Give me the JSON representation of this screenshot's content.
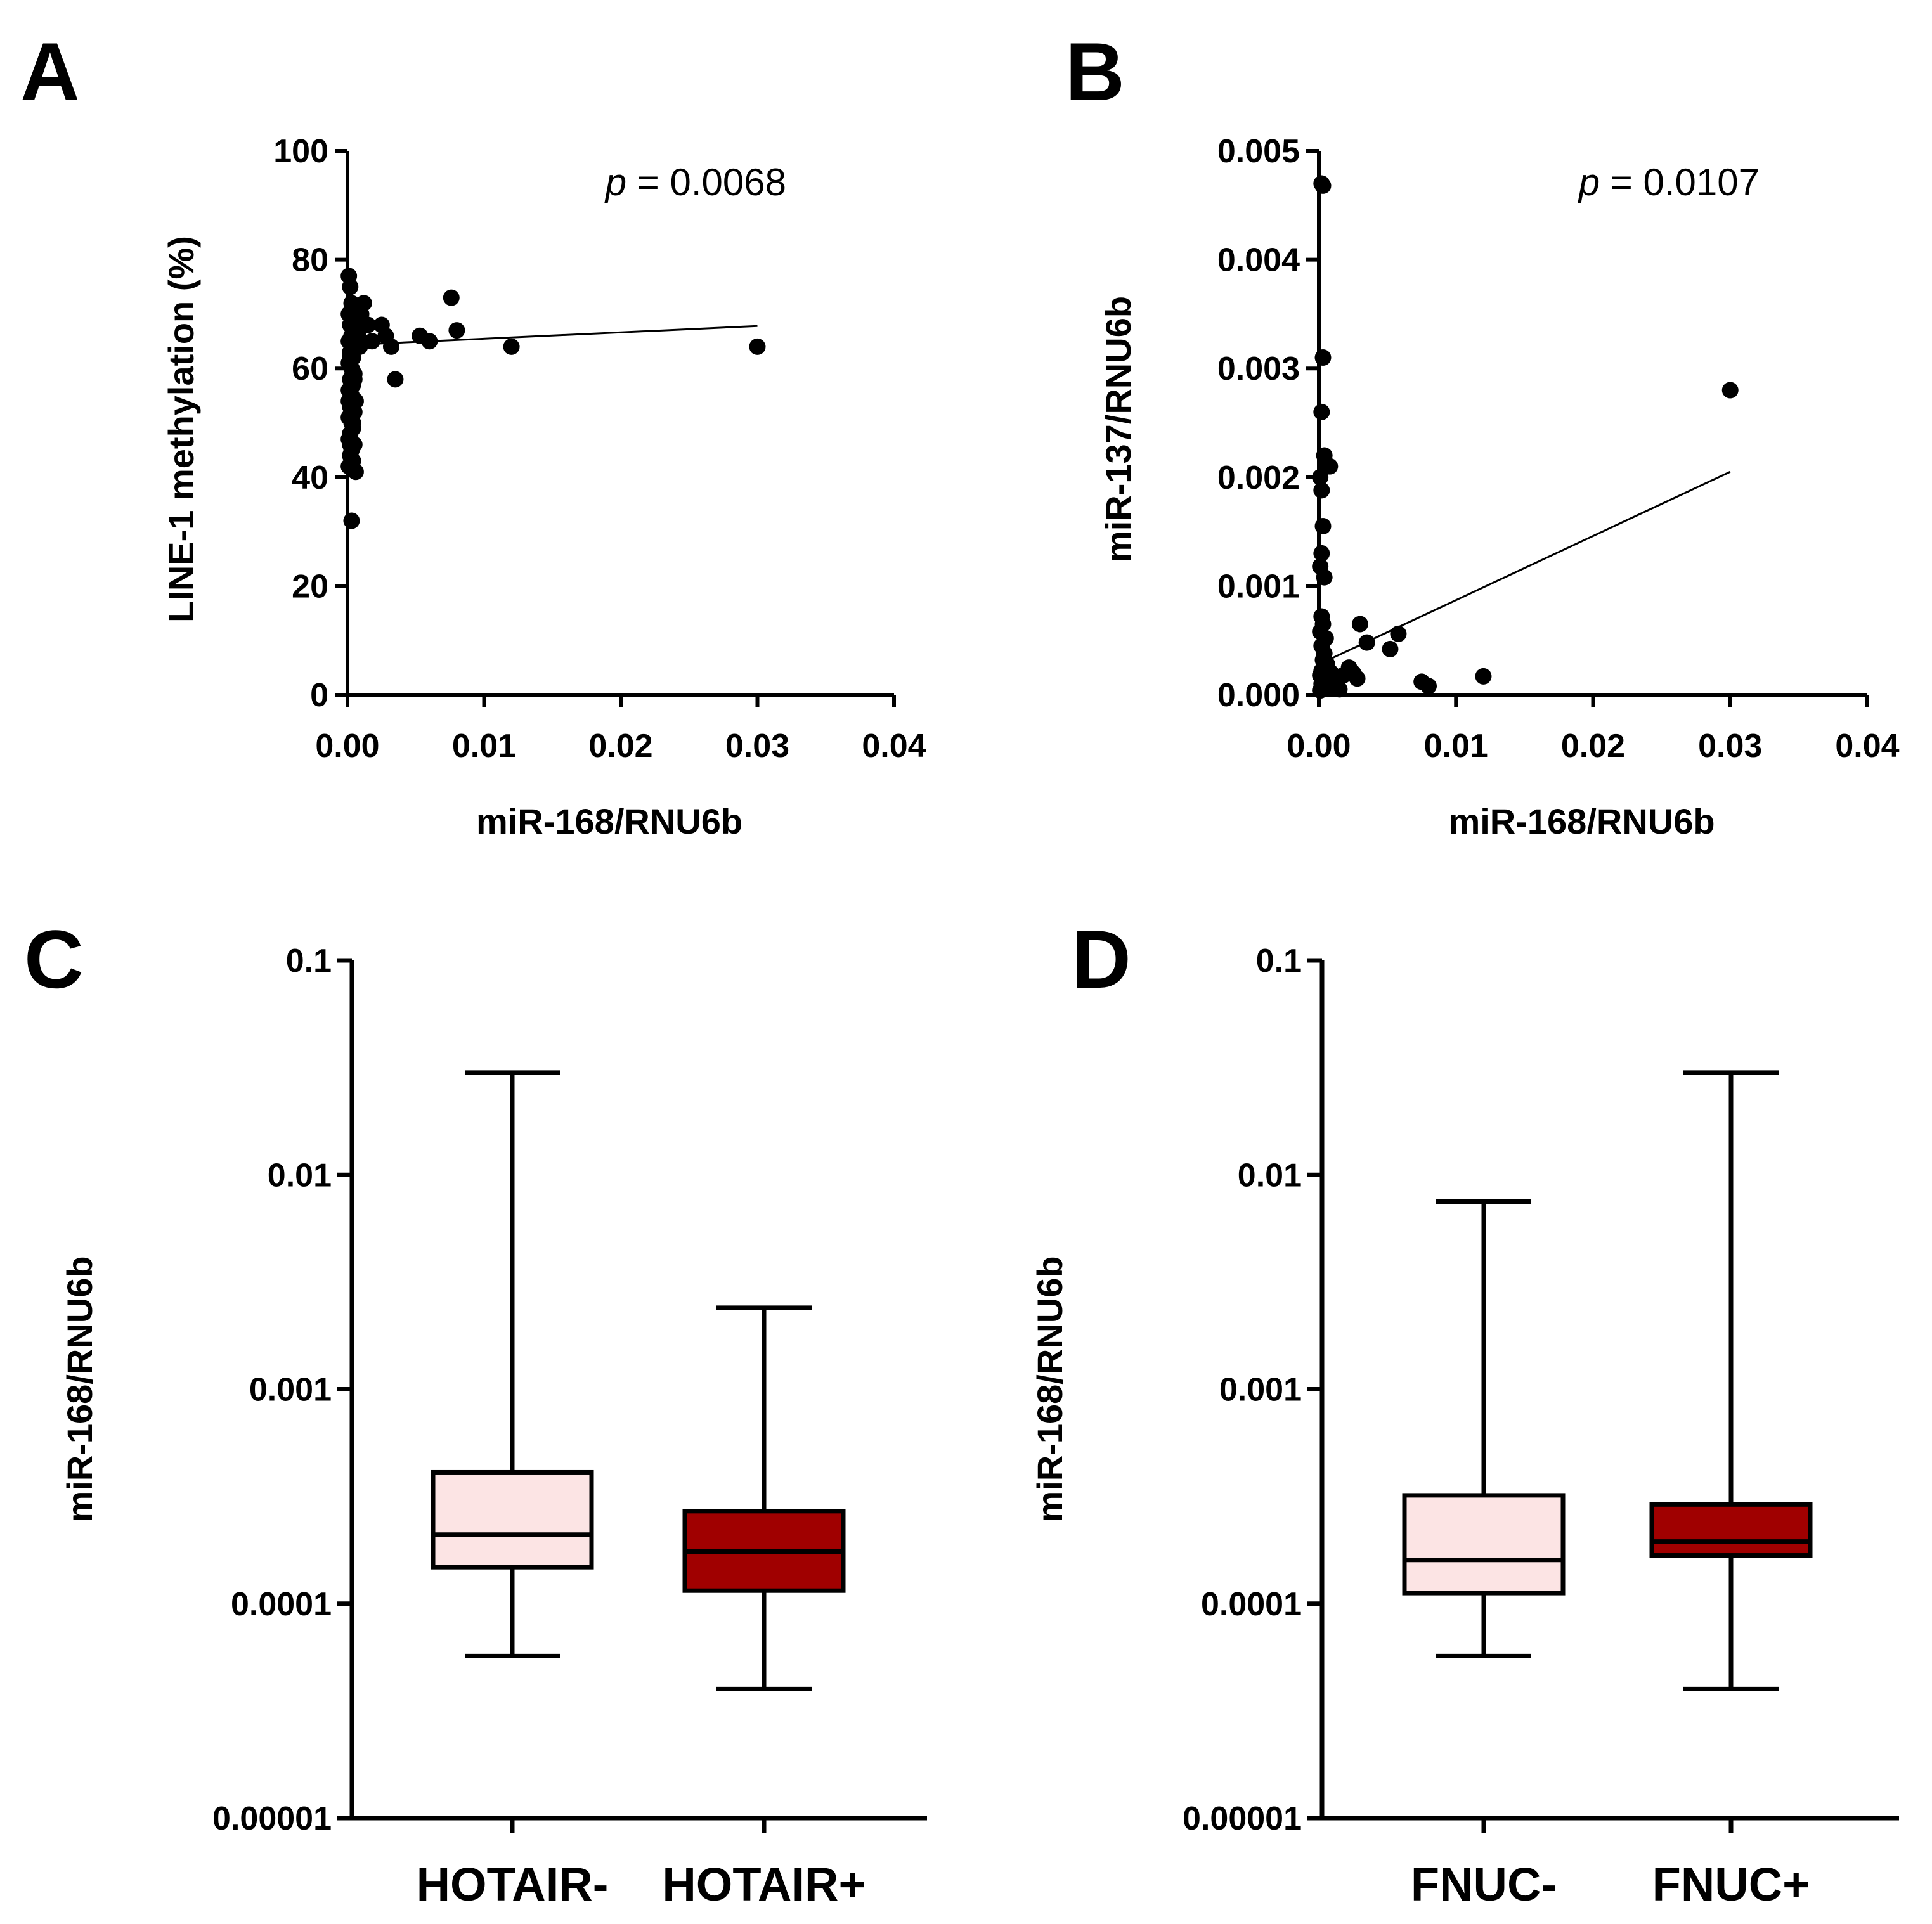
{
  "figure": {
    "panel_letters": [
      "A",
      "B",
      "C",
      "D"
    ]
  },
  "chart_data": [
    {
      "panel": "A",
      "type": "scatter",
      "xlabel": "miR-168/RNU6b",
      "ylabel": "LINE-1 methylation (%)",
      "xlim": [
        0,
        0.04
      ],
      "ylim": [
        0,
        100
      ],
      "x_ticks": [
        "0.00",
        "0.01",
        "0.02",
        "0.03",
        "0.04"
      ],
      "y_ticks": [
        "0",
        "20",
        "40",
        "60",
        "80",
        "100"
      ],
      "annotation": {
        "p_symbol": "p",
        "text": " = 0.0068"
      },
      "fit_line": {
        "x": [
          0.0,
          0.03
        ],
        "y": [
          64.3,
          67.8
        ]
      },
      "points": {
        "x": [
          0.0001,
          0.0002,
          0.0003,
          0.0001,
          0.0004,
          0.0002,
          0.0005,
          0.0003,
          0.0001,
          0.0006,
          0.0002,
          0.0004,
          0.0001,
          0.0003,
          0.0005,
          0.0002,
          0.0004,
          0.0001,
          0.0003,
          0.0006,
          0.0002,
          0.0005,
          0.0001,
          0.0003,
          0.0004,
          0.0002,
          0.0001,
          0.0005,
          0.0003,
          0.0002,
          0.0004,
          0.0001,
          0.0006,
          0.0003,
          0.0002,
          0.0005,
          0.0001,
          0.0004,
          0.0002,
          0.0003,
          0.0007,
          0.0008,
          0.0009,
          0.001,
          0.0012,
          0.0015,
          0.0018,
          0.0025,
          0.0028,
          0.0032,
          0.0035,
          0.0053,
          0.006,
          0.0076,
          0.008,
          0.012,
          0.03
        ],
        "y": [
          77,
          75,
          72,
          70,
          69,
          68,
          67,
          66,
          65,
          64,
          63,
          62,
          61,
          60,
          59,
          58,
          57,
          56,
          55,
          54,
          53,
          52,
          51,
          50,
          49,
          48,
          47,
          46,
          45,
          44,
          43,
          42,
          41,
          66,
          62,
          58,
          54,
          50,
          46,
          32,
          68,
          66,
          64,
          70,
          72,
          68,
          65,
          68,
          66,
          64,
          58,
          66,
          65,
          73,
          67,
          64,
          64
        ]
      }
    },
    {
      "panel": "B",
      "type": "scatter",
      "xlabel": "miR-168/RNU6b",
      "ylabel": "miR-137/RNU6b",
      "xlim": [
        0,
        0.04
      ],
      "ylim": [
        0,
        0.005
      ],
      "x_ticks": [
        "0.00",
        "0.01",
        "0.02",
        "0.03",
        "0.04"
      ],
      "y_ticks": [
        "0.000",
        "0.001",
        "0.002",
        "0.003",
        "0.004",
        "0.005"
      ],
      "annotation": {
        "p_symbol": "p",
        "text": " = 0.0107"
      },
      "fit_line": {
        "x": [
          0.0,
          0.03
        ],
        "y": [
          0.00028,
          0.00205
        ]
      },
      "points": {
        "x": [
          0.0002,
          0.0003,
          0.0003,
          0.0002,
          0.0004,
          0.0006,
          0.0008,
          0.0001,
          0.0002,
          0.0003,
          0.0002,
          0.0001,
          0.0004,
          0.0002,
          0.0003,
          0.0001,
          0.0005,
          0.0002,
          0.0004,
          0.0003,
          0.0006,
          0.0002,
          0.0001,
          0.0005,
          0.0003,
          0.0002,
          0.0007,
          0.0004,
          0.0001,
          0.0009,
          0.0012,
          0.0015,
          0.0018,
          0.0022,
          0.0025,
          0.0028,
          0.003,
          0.0035,
          0.0052,
          0.0058,
          0.0075,
          0.008,
          0.012,
          0.03
        ],
        "y": [
          0.0047,
          0.00468,
          0.0031,
          0.0026,
          0.0022,
          0.0021,
          0.0021,
          0.002,
          0.00188,
          0.00155,
          0.0013,
          0.00118,
          0.00108,
          0.00072,
          0.00065,
          0.00058,
          0.00052,
          0.00045,
          0.00038,
          0.00032,
          0.00028,
          0.00022,
          0.00018,
          0.00015,
          0.00012,
          0.0001,
          8e-05,
          6e-05,
          4e-05,
          0.0002,
          0.00012,
          5e-05,
          0.00018,
          0.00025,
          0.0002,
          0.00015,
          0.00065,
          0.00048,
          0.00042,
          0.00056,
          0.00012,
          8e-05,
          0.00017,
          0.0028
        ]
      }
    },
    {
      "panel": "C",
      "type": "box",
      "ylabel": "miR-168/RNU6b",
      "yscale": "log",
      "ylim": [
        1e-05,
        0.1
      ],
      "y_ticks": [
        "0.00001",
        "0.0001",
        "0.001",
        "0.01",
        "0.1"
      ],
      "categories": [
        "HOTAIR-",
        "HOTAIR+"
      ],
      "boxes": [
        {
          "name": "HOTAIR-",
          "whisker_low": 5.7e-05,
          "q1": 0.000148,
          "median": 0.00021,
          "q3": 0.00041,
          "whisker_high": 0.03,
          "color": "#fce4e4"
        },
        {
          "name": "HOTAIR+",
          "whisker_low": 4e-05,
          "q1": 0.000115,
          "median": 0.000175,
          "q3": 0.00027,
          "whisker_high": 0.0024,
          "color": "#a00000"
        }
      ]
    },
    {
      "panel": "D",
      "type": "box",
      "ylabel": "miR-168/RNU6b",
      "yscale": "log",
      "ylim": [
        1e-05,
        0.1
      ],
      "y_ticks": [
        "0.00001",
        "0.0001",
        "0.001",
        "0.01",
        "0.1"
      ],
      "categories": [
        "FNUC-",
        "FNUC+"
      ],
      "boxes": [
        {
          "name": "FNUC-",
          "whisker_low": 5.7e-05,
          "q1": 0.000112,
          "median": 0.00016,
          "q3": 0.00032,
          "whisker_high": 0.0075,
          "color": "#fce4e4"
        },
        {
          "name": "FNUC+",
          "whisker_low": 4e-05,
          "q1": 0.000168,
          "median": 0.000195,
          "q3": 0.00029,
          "whisker_high": 0.03,
          "color": "#a00000"
        }
      ]
    }
  ]
}
